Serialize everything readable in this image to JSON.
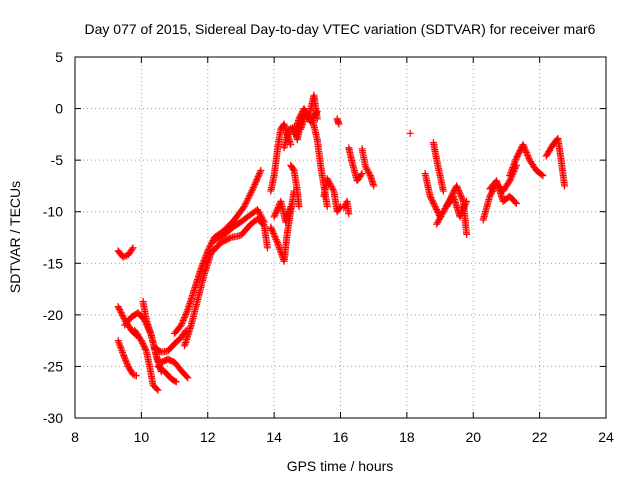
{
  "chart_data": {
    "type": "scatter",
    "title": "Day 077 of 2015, Sidereal Day-to-day VTEC variation (SDTVAR) for receiver mar6",
    "xlabel": "GPS time / hours",
    "ylabel": "SDTVAR / TECUs",
    "xlim": [
      8,
      24
    ],
    "ylim": [
      -30,
      5
    ],
    "xticks": [
      8,
      10,
      12,
      14,
      16,
      18,
      20,
      22,
      24
    ],
    "yticks": [
      5,
      0,
      -5,
      -10,
      -15,
      -20,
      -25,
      -30
    ],
    "grid": true,
    "marker": "plus",
    "color": "#ff0000",
    "tracks": [
      {
        "x": [
          9.3,
          9.45,
          9.6,
          9.75
        ],
        "y": [
          -13.8,
          -14.4,
          -14.2,
          -13.5
        ]
      },
      {
        "x": [
          9.3,
          9.5,
          9.7,
          9.85
        ],
        "y": [
          -19.2,
          -20.5,
          -21.5,
          -22.0
        ]
      },
      {
        "x": [
          9.3,
          9.45,
          9.6,
          9.75,
          9.85
        ],
        "y": [
          -22.5,
          -23.8,
          -25.0,
          -25.8,
          -25.9
        ]
      },
      {
        "x": [
          9.5,
          9.7,
          9.9,
          10.1,
          10.3,
          10.5
        ],
        "y": [
          -21.0,
          -20.2,
          -19.8,
          -20.5,
          -22.0,
          -24.5
        ]
      },
      {
        "x": [
          9.8,
          10.0,
          10.15,
          10.25,
          10.35,
          10.5
        ],
        "y": [
          -21.5,
          -22.5,
          -23.5,
          -25.0,
          -26.8,
          -27.3
        ]
      },
      {
        "x": [
          10.05,
          10.15,
          10.3,
          10.45,
          10.6
        ],
        "y": [
          -18.7,
          -20.5,
          -22.0,
          -24.0,
          -25.5
        ]
      },
      {
        "x": [
          10.5,
          10.7,
          10.9,
          11.05
        ],
        "y": [
          -25.0,
          -25.5,
          -26.2,
          -26.5
        ]
      },
      {
        "x": [
          10.4,
          10.6,
          10.8,
          11.0,
          11.2,
          11.35
        ],
        "y": [
          -23.2,
          -23.6,
          -23.5,
          -22.8,
          -22.2,
          -21.5
        ]
      },
      {
        "x": [
          10.6,
          10.8,
          11.0,
          11.2,
          11.4
        ],
        "y": [
          -24.6,
          -24.3,
          -24.6,
          -25.4,
          -26.1
        ]
      },
      {
        "x": [
          11.0,
          11.2,
          11.4,
          11.6,
          11.8,
          12.0,
          12.2,
          12.5,
          12.8,
          13.1,
          13.4,
          13.6
        ],
        "y": [
          -21.8,
          -21.0,
          -19.5,
          -17.5,
          -15.5,
          -13.8,
          -12.5,
          -11.8,
          -10.8,
          -9.5,
          -7.5,
          -6.0
        ]
      },
      {
        "x": [
          11.3,
          11.5,
          11.7,
          11.9,
          12.1,
          12.4,
          12.7,
          13.0,
          13.3,
          13.5,
          13.7,
          13.8
        ],
        "y": [
          -23.0,
          -21.0,
          -18.5,
          -16.0,
          -14.0,
          -13.0,
          -12.5,
          -12.3,
          -11.2,
          -10.7,
          -11.3,
          -13.5
        ]
      },
      {
        "x": [
          12.2,
          12.5,
          12.8,
          13.0,
          13.2,
          13.5,
          13.7
        ],
        "y": [
          -12.8,
          -12.2,
          -11.4,
          -11.0,
          -10.5,
          -9.8,
          -11.0
        ]
      },
      {
        "x": [
          13.9,
          14.0,
          14.1,
          14.2,
          14.3,
          14.5
        ],
        "y": [
          -8.0,
          -6.5,
          -4.0,
          -2.0,
          -1.5,
          -3.5
        ]
      },
      {
        "x": [
          13.9,
          14.1,
          14.3,
          14.4,
          14.6
        ],
        "y": [
          -11.5,
          -13.0,
          -14.8,
          -12.0,
          -8.0
        ]
      },
      {
        "x": [
          14.0,
          14.2,
          14.35,
          14.5
        ],
        "y": [
          -10.5,
          -9.0,
          -11.0,
          -9.5
        ]
      },
      {
        "x": [
          14.3,
          14.45,
          14.6,
          14.7,
          14.8
        ],
        "y": [
          -3.8,
          -2.0,
          -1.8,
          -3.0,
          -1.5
        ]
      },
      {
        "x": [
          14.5,
          14.6,
          14.7,
          14.75
        ],
        "y": [
          -5.5,
          -6.0,
          -8.0,
          -9.5
        ]
      },
      {
        "x": [
          14.6,
          14.75,
          14.9,
          15.05,
          15.2,
          15.3
        ],
        "y": [
          -2.5,
          -1.0,
          0.0,
          -0.8,
          1.3,
          -1.0
        ]
      },
      {
        "x": [
          14.8,
          14.95,
          15.1,
          15.3
        ],
        "y": [
          -2.0,
          -0.5,
          -1.3,
          -0.3
        ]
      },
      {
        "x": [
          15.15,
          15.3,
          15.4,
          15.5,
          15.6
        ],
        "y": [
          -1.0,
          -3.0,
          -5.5,
          -7.5,
          -9.5
        ]
      },
      {
        "x": [
          15.5,
          15.6,
          15.8,
          15.9,
          16.0
        ],
        "y": [
          -8.5,
          -6.8,
          -8.0,
          -10.0,
          -9.5
        ]
      },
      {
        "x": [
          15.9,
          15.95
        ],
        "y": [
          -1.0,
          -1.5
        ]
      },
      {
        "x": [
          16.1,
          16.2,
          16.25
        ],
        "y": [
          -9.6,
          -9.0,
          -10.2
        ]
      },
      {
        "x": [
          16.25,
          16.35,
          16.5,
          16.65
        ],
        "y": [
          -3.8,
          -5.2,
          -7.0,
          -6.3
        ]
      },
      {
        "x": [
          16.65,
          16.75,
          16.9,
          17.0
        ],
        "y": [
          -3.9,
          -5.6,
          -6.5,
          -7.5
        ]
      },
      {
        "x": [
          18.1
        ],
        "y": [
          -2.4
        ]
      },
      {
        "x": [
          18.55,
          18.7,
          18.85,
          19.0
        ],
        "y": [
          -6.3,
          -8.5,
          -9.5,
          -10.5
        ]
      },
      {
        "x": [
          18.8,
          18.9,
          19.0,
          19.1
        ],
        "y": [
          -3.3,
          -5.0,
          -6.5,
          -8.0
        ]
      },
      {
        "x": [
          18.9,
          19.1,
          19.3,
          19.5,
          19.7,
          19.8
        ],
        "y": [
          -11.2,
          -10.0,
          -8.8,
          -7.5,
          -9.0,
          -12.2
        ]
      },
      {
        "x": [
          19.2,
          19.4,
          19.6,
          19.8
        ],
        "y": [
          -9.5,
          -8.5,
          -10.5,
          -9.0
        ]
      },
      {
        "x": [
          20.3,
          20.5,
          20.7,
          20.9,
          21.1,
          21.3
        ],
        "y": [
          -10.8,
          -8.5,
          -7.3,
          -8.0,
          -7.0,
          -5.5
        ]
      },
      {
        "x": [
          20.5,
          20.7,
          20.9,
          21.1,
          21.3
        ],
        "y": [
          -7.8,
          -7.0,
          -9.0,
          -8.5,
          -9.2
        ]
      },
      {
        "x": [
          21.1,
          21.3,
          21.5,
          21.7,
          21.9,
          22.1
        ],
        "y": [
          -6.5,
          -4.8,
          -3.5,
          -5.0,
          -6.0,
          -6.5
        ]
      },
      {
        "x": [
          22.2,
          22.4,
          22.55,
          22.65,
          22.75
        ],
        "y": [
          -4.6,
          -3.5,
          -2.9,
          -5.0,
          -7.5
        ]
      }
    ]
  }
}
